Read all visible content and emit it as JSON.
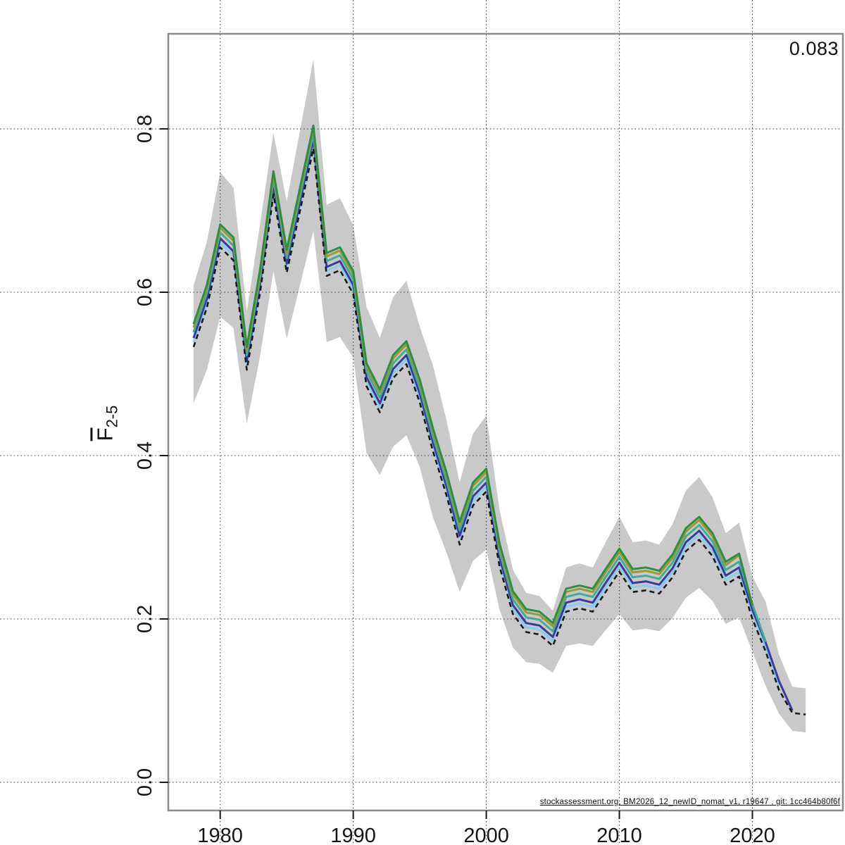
{
  "annotation_final_value": "0.083",
  "watermark": "stockassessment.org, BM2026_12_newID_nomat_v1, r19647 , git: 1cc464b80f6f",
  "y_axis_title": {
    "main": "F",
    "sub": "2-5"
  },
  "colors": {
    "band": "#c9c9c9",
    "frame": "#8a8a8a",
    "base_run": "#1a1a1a",
    "peel_2019": "#999933",
    "peel_2020": "#2f8e43",
    "peel_2021": "#44aa99",
    "peel_2022": "#88ccee",
    "peel_2023": "#3b3b9c"
  },
  "chart_data": {
    "type": "line",
    "title": "",
    "xlabel": "",
    "ylabel": "Fbar(2-5)",
    "grid": true,
    "legend": "none",
    "xlim": [
      1976.1,
      2026.8
    ],
    "ylim": [
      -0.0345,
      0.9164
    ],
    "x_ticks": [
      {
        "value": 1980,
        "label": "1980"
      },
      {
        "value": 1990,
        "label": "1990"
      },
      {
        "value": 2000,
        "label": "2000"
      },
      {
        "value": 2010,
        "label": "2010"
      },
      {
        "value": 2020,
        "label": "2020"
      }
    ],
    "y_ticks": [
      {
        "value": 0.0,
        "label": "0.0"
      },
      {
        "value": 0.2,
        "label": "0.2"
      },
      {
        "value": 0.4,
        "label": "0.4"
      },
      {
        "value": 0.6,
        "label": "0.6"
      },
      {
        "value": 0.8,
        "label": "0.8"
      }
    ],
    "years": [
      1978,
      1979,
      1980,
      1981,
      1982,
      1983,
      1984,
      1985,
      1986,
      1987,
      1988,
      1989,
      1990,
      1991,
      1992,
      1993,
      1994,
      1995,
      1996,
      1997,
      1998,
      1999,
      2000,
      2001,
      2002,
      2003,
      2004,
      2005,
      2006,
      2007,
      2008,
      2009,
      2010,
      2011,
      2012,
      2013,
      2014,
      2015,
      2016,
      2017,
      2018,
      2019,
      2020,
      2021,
      2022,
      2023,
      2024
    ],
    "band": {
      "name": "confidence-band",
      "color": "#c9c9c9",
      "hi": [
        0.608,
        0.662,
        0.747,
        0.728,
        0.576,
        0.684,
        0.795,
        0.711,
        0.798,
        0.885,
        0.707,
        0.715,
        0.682,
        0.582,
        0.544,
        0.594,
        0.614,
        0.558,
        0.51,
        0.444,
        0.367,
        0.427,
        0.449,
        0.333,
        0.26,
        0.232,
        0.228,
        0.21,
        0.263,
        0.268,
        0.263,
        0.295,
        0.325,
        0.294,
        0.296,
        0.291,
        0.316,
        0.357,
        0.374,
        0.349,
        0.305,
        0.318,
        0.252,
        0.221,
        0.156,
        0.117,
        0.115
      ],
      "lo": [
        0.464,
        0.505,
        0.57,
        0.556,
        0.439,
        0.522,
        0.626,
        0.543,
        0.609,
        0.675,
        0.539,
        0.545,
        0.52,
        0.403,
        0.376,
        0.411,
        0.425,
        0.386,
        0.324,
        0.282,
        0.233,
        0.271,
        0.285,
        0.211,
        0.165,
        0.147,
        0.145,
        0.134,
        0.167,
        0.17,
        0.167,
        0.187,
        0.206,
        0.186,
        0.188,
        0.185,
        0.201,
        0.226,
        0.238,
        0.222,
        0.194,
        0.202,
        0.16,
        0.118,
        0.084,
        0.063,
        0.061
      ]
    },
    "series": [
      {
        "name": "retro-peel-2022",
        "color": "#88ccee",
        "dashed": false,
        "width": 3,
        "values": [
          0.539,
          0.587,
          0.661,
          0.645,
          0.511,
          0.606,
          0.726,
          0.63,
          0.706,
          0.782,
          0.626,
          0.633,
          0.604,
          0.491,
          0.459,
          0.501,
          0.518,
          0.471,
          0.411,
          0.358,
          0.297,
          0.345,
          0.362,
          0.27,
          0.212,
          0.19,
          0.187,
          0.173,
          0.215,
          0.219,
          0.215,
          0.24,
          0.264,
          0.239,
          0.241,
          0.237,
          0.257,
          0.289,
          0.303,
          0.283,
          0.248,
          0.258,
          0.206,
          0.166,
          0.119
        ]
      },
      {
        "name": "retro-peel-2023",
        "color": "#3b3b9c",
        "dashed": false,
        "width": 3,
        "values": [
          0.544,
          0.592,
          0.666,
          0.65,
          0.516,
          0.611,
          0.731,
          0.635,
          0.711,
          0.787,
          0.631,
          0.638,
          0.609,
          0.496,
          0.464,
          0.506,
          0.523,
          0.476,
          0.416,
          0.363,
          0.302,
          0.35,
          0.367,
          0.275,
          0.217,
          0.195,
          0.192,
          0.178,
          0.22,
          0.224,
          0.22,
          0.245,
          0.269,
          0.244,
          0.246,
          0.242,
          0.262,
          0.294,
          0.308,
          0.288,
          0.253,
          0.263,
          0.211,
          0.171,
          0.124,
          0.088
        ]
      },
      {
        "name": "retro-peel-2021",
        "color": "#44aa99",
        "dashed": false,
        "width": 3,
        "values": [
          0.551,
          0.599,
          0.673,
          0.657,
          0.523,
          0.618,
          0.738,
          0.642,
          0.718,
          0.794,
          0.638,
          0.645,
          0.616,
          0.503,
          0.471,
          0.513,
          0.53,
          0.483,
          0.423,
          0.37,
          0.309,
          0.357,
          0.374,
          0.282,
          0.224,
          0.202,
          0.199,
          0.185,
          0.227,
          0.231,
          0.227,
          0.252,
          0.276,
          0.251,
          0.253,
          0.249,
          0.269,
          0.301,
          0.315,
          0.295,
          0.26,
          0.27,
          0.218,
          0.172
        ]
      },
      {
        "name": "retro-peel-2019",
        "color": "#999933",
        "dashed": false,
        "width": 3,
        "values": [
          0.557,
          0.605,
          0.679,
          0.663,
          0.529,
          0.624,
          0.744,
          0.648,
          0.724,
          0.8,
          0.644,
          0.651,
          0.622,
          0.509,
          0.477,
          0.519,
          0.536,
          0.489,
          0.429,
          0.376,
          0.315,
          0.363,
          0.38,
          0.288,
          0.23,
          0.208,
          0.205,
          0.191,
          0.233,
          0.237,
          0.233,
          0.258,
          0.282,
          0.257,
          0.259,
          0.255,
          0.275,
          0.307,
          0.321,
          0.301,
          0.266,
          0.278
        ]
      },
      {
        "name": "retro-peel-2020",
        "color": "#2f8e43",
        "dashed": false,
        "width": 3,
        "values": [
          0.561,
          0.609,
          0.683,
          0.667,
          0.533,
          0.628,
          0.748,
          0.652,
          0.728,
          0.804,
          0.648,
          0.655,
          0.626,
          0.513,
          0.481,
          0.523,
          0.54,
          0.493,
          0.433,
          0.38,
          0.319,
          0.367,
          0.384,
          0.292,
          0.234,
          0.212,
          0.209,
          0.195,
          0.237,
          0.241,
          0.237,
          0.262,
          0.286,
          0.261,
          0.263,
          0.259,
          0.279,
          0.311,
          0.325,
          0.305,
          0.27,
          0.28,
          0.216
        ]
      },
      {
        "name": "base-run",
        "color": "#1a1a1a",
        "dashed": true,
        "width": 2.6,
        "values": [
          0.533,
          0.581,
          0.655,
          0.639,
          0.505,
          0.6,
          0.72,
          0.624,
          0.7,
          0.776,
          0.62,
          0.627,
          0.598,
          0.485,
          0.453,
          0.495,
          0.512,
          0.465,
          0.405,
          0.352,
          0.291,
          0.339,
          0.356,
          0.264,
          0.206,
          0.184,
          0.181,
          0.167,
          0.209,
          0.213,
          0.209,
          0.234,
          0.258,
          0.233,
          0.235,
          0.231,
          0.251,
          0.283,
          0.297,
          0.277,
          0.242,
          0.252,
          0.2,
          0.16,
          0.113,
          0.085,
          0.083
        ]
      }
    ]
  }
}
